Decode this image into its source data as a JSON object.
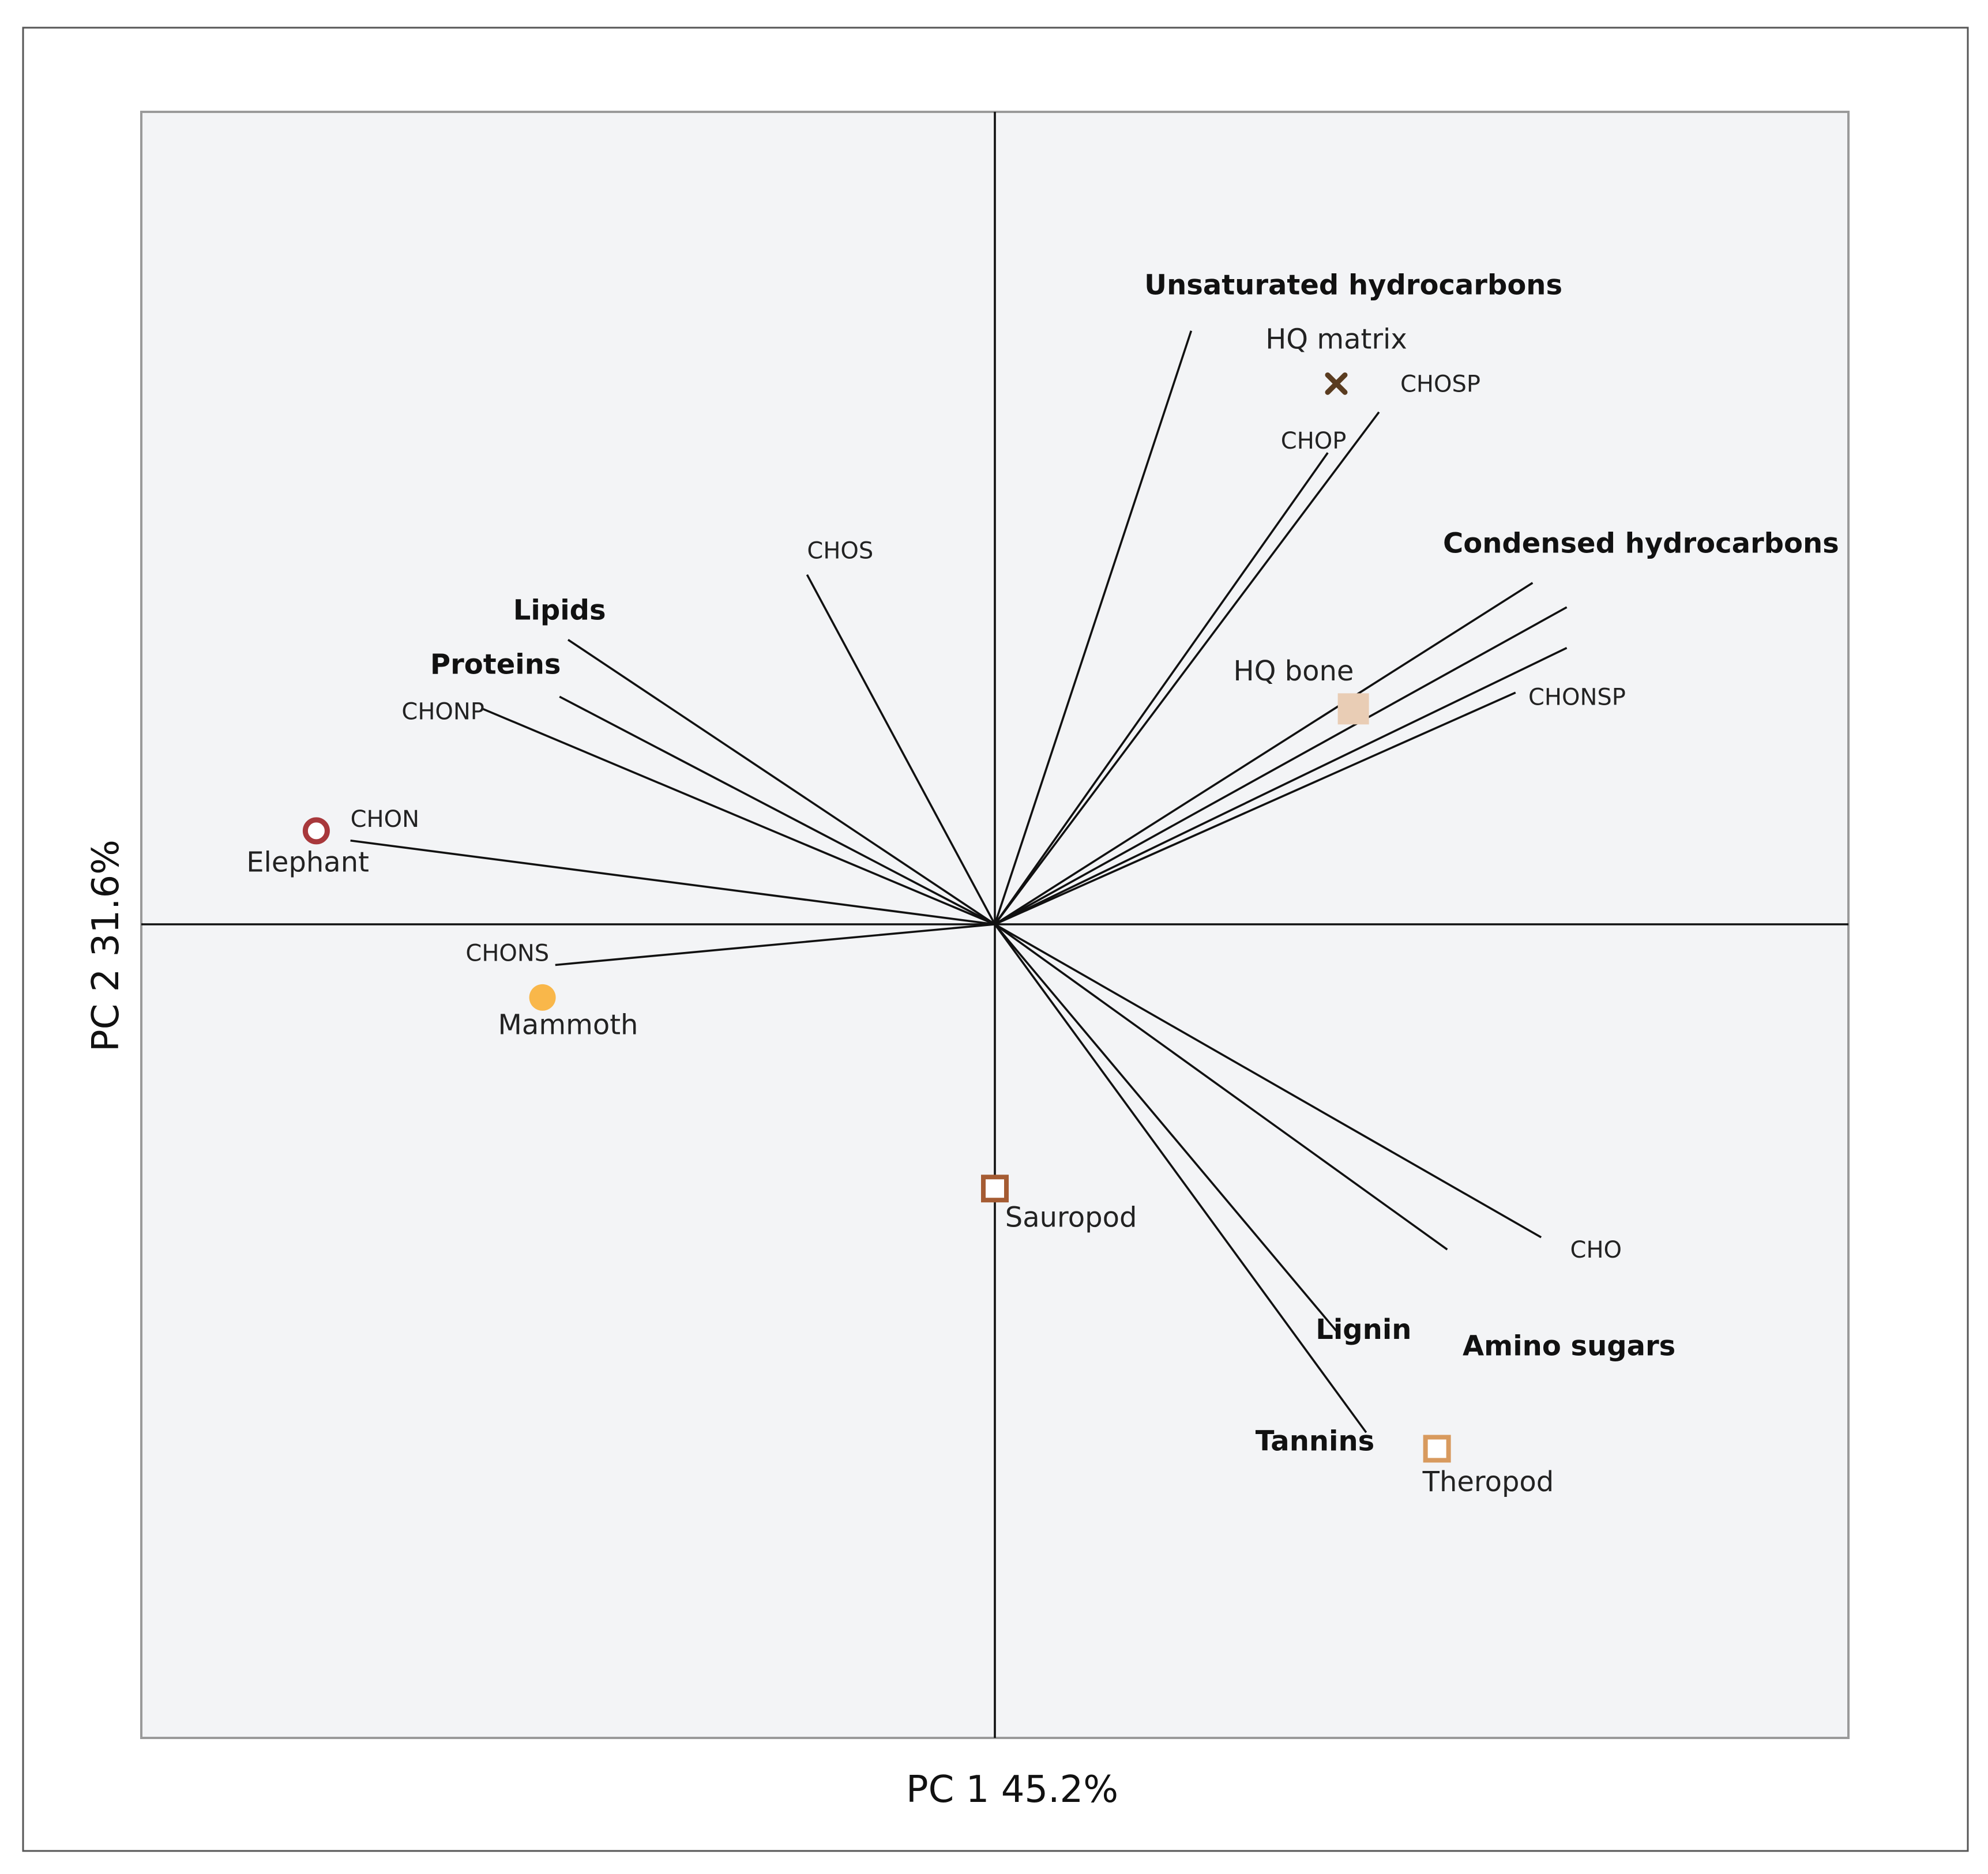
{
  "chart_data": {
    "type": "scatter",
    "subtype": "pca-biplot",
    "title": "",
    "xlabel": "PC 1 45.2%",
    "ylabel": "PC 2 31.6%",
    "xlim": [
      -1.0,
      1.0
    ],
    "ylim": [
      -1.0,
      1.0
    ],
    "grid": false,
    "legend": "none",
    "loadings": [
      {
        "name": "Unsaturated hydrocarbons",
        "x": 0.23,
        "y": 0.73,
        "bold": true,
        "label_x": 0.42,
        "label_y": 0.775,
        "anchor": "middle"
      },
      {
        "name": "CHOSP",
        "x": 0.45,
        "y": 0.63,
        "bold": false,
        "label_x": 0.475,
        "label_y": 0.655,
        "anchor": "start"
      },
      {
        "name": "CHOP",
        "x": 0.39,
        "y": 0.58,
        "bold": false,
        "label_x": 0.335,
        "label_y": 0.585,
        "anchor": "start"
      },
      {
        "name": "Condensed hydrocarbons",
        "x": 0.63,
        "y": 0.42,
        "bold": true,
        "label_x": 0.525,
        "label_y": 0.457,
        "anchor": "start"
      },
      {
        "name": "",
        "x": 0.67,
        "y": 0.39,
        "bold": false,
        "label_x": 0,
        "label_y": 0,
        "anchor": "start"
      },
      {
        "name": "",
        "x": 0.67,
        "y": 0.34,
        "bold": false,
        "label_x": 0,
        "label_y": 0,
        "anchor": "start"
      },
      {
        "name": "CHONSP",
        "x": 0.61,
        "y": 0.285,
        "bold": false,
        "label_x": 0.625,
        "label_y": 0.27,
        "anchor": "start"
      },
      {
        "name": "CHOS",
        "x": -0.22,
        "y": 0.43,
        "bold": false,
        "label_x": -0.22,
        "label_y": 0.45,
        "anchor": "start"
      },
      {
        "name": "Lipids",
        "x": -0.5,
        "y": 0.35,
        "bold": true,
        "label_x": -0.51,
        "label_y": 0.375,
        "anchor": "middle"
      },
      {
        "name": "Proteins",
        "x": -0.51,
        "y": 0.28,
        "bold": true,
        "label_x": -0.585,
        "label_y": 0.308,
        "anchor": "middle"
      },
      {
        "name": "CHONP",
        "x": -0.6,
        "y": 0.265,
        "bold": false,
        "label_x": -0.695,
        "label_y": 0.252,
        "anchor": "start"
      },
      {
        "name": "CHON",
        "x": -0.755,
        "y": 0.103,
        "bold": false,
        "label_x": -0.755,
        "label_y": 0.12,
        "anchor": "start"
      },
      {
        "name": "CHONS",
        "x": -0.515,
        "y": -0.05,
        "bold": false,
        "label_x": -0.62,
        "label_y": -0.045,
        "anchor": "start"
      },
      {
        "name": "CHO",
        "x": 0.64,
        "y": -0.385,
        "bold": false,
        "label_x": 0.674,
        "label_y": -0.41,
        "anchor": "start"
      },
      {
        "name": "Amino sugars",
        "x": 0.53,
        "y": -0.4,
        "bold": true,
        "label_x": 0.548,
        "label_y": -0.53,
        "anchor": "start"
      },
      {
        "name": "Lignin",
        "x": 0.4,
        "y": -0.5,
        "bold": true,
        "label_x": 0.432,
        "label_y": -0.51,
        "anchor": "middle"
      },
      {
        "name": "Tannins",
        "x": 0.435,
        "y": -0.625,
        "bold": true,
        "label_x": 0.375,
        "label_y": -0.647,
        "anchor": "middle"
      }
    ],
    "samples": [
      {
        "name": "HQ matrix",
        "x": 0.4,
        "y": 0.665,
        "marker": "x",
        "color": "#5a3c20",
        "label_x": 0.4,
        "label_y": 0.708,
        "anchor": "middle"
      },
      {
        "name": "HQ bone",
        "x": 0.42,
        "y": 0.265,
        "marker": "filled-square",
        "color": "#e9cdb5",
        "label_x": 0.35,
        "label_y": 0.3,
        "anchor": "middle"
      },
      {
        "name": "Elephant",
        "x": -0.795,
        "y": 0.115,
        "marker": "open-circle",
        "color": "#a8383b",
        "label_x": -0.805,
        "label_y": 0.065,
        "anchor": "middle"
      },
      {
        "name": "Mammoth",
        "x": -0.53,
        "y": -0.09,
        "marker": "filled-circle",
        "color": "#f9b74a",
        "label_x": -0.5,
        "label_y": -0.135,
        "anchor": "middle"
      },
      {
        "name": "Sauropod",
        "x": 0.0,
        "y": -0.325,
        "marker": "open-square",
        "color": "#a55c33",
        "label_x": 0.012,
        "label_y": -0.372,
        "anchor": "start"
      },
      {
        "name": "Theropod",
        "x": 0.518,
        "y": -0.645,
        "marker": "open-square",
        "color": "#d89a5e",
        "label_x": 0.578,
        "label_y": -0.697,
        "anchor": "middle"
      }
    ]
  }
}
